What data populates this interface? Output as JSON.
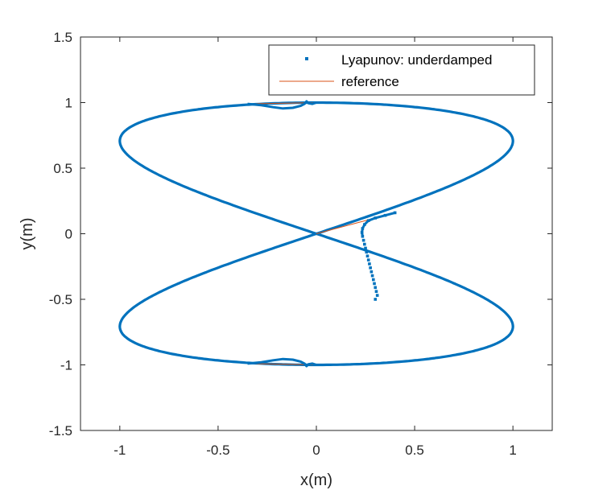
{
  "chart_data": {
    "type": "line",
    "title": "",
    "xlabel": "x(m)",
    "ylabel": "y(m)",
    "xlim": [
      -1.2,
      1.2
    ],
    "ylim": [
      -1.5,
      1.5
    ],
    "xticks": [
      -1,
      -0.5,
      0,
      0.5,
      1
    ],
    "yticks": [
      -1.5,
      -1,
      -0.5,
      0,
      0.5,
      1,
      1.5
    ],
    "xtick_labels": [
      "-1",
      "-0.5",
      "0",
      "0.5",
      "1"
    ],
    "ytick_labels": [
      "-1.5",
      "-1",
      "-0.5",
      "0",
      "0.5",
      "1",
      "1.5"
    ],
    "grid": false,
    "legend_position": "top-right",
    "series": [
      {
        "name": "Lyapunov: underdamped",
        "style": "markers",
        "color": "#0072BD",
        "description_of_path": "figure-eight trajectory x=sin(t), y=cos(t/2)-like lobes, converging from start point",
        "transient_points": [
          [
            0.3,
            -0.5
          ],
          [
            0.31,
            -0.47
          ],
          [
            0.305,
            -0.44
          ],
          [
            0.3,
            -0.41
          ],
          [
            0.295,
            -0.38
          ],
          [
            0.29,
            -0.35
          ],
          [
            0.285,
            -0.32
          ],
          [
            0.28,
            -0.29
          ],
          [
            0.275,
            -0.26
          ],
          [
            0.27,
            -0.23
          ],
          [
            0.265,
            -0.2
          ],
          [
            0.26,
            -0.17
          ],
          [
            0.255,
            -0.14
          ],
          [
            0.25,
            -0.11
          ],
          [
            0.245,
            -0.08
          ],
          [
            0.24,
            -0.05
          ],
          [
            0.235,
            -0.02
          ],
          [
            0.232,
            0.01
          ],
          [
            0.235,
            0.04
          ],
          [
            0.245,
            0.07
          ],
          [
            0.265,
            0.1
          ],
          [
            0.3,
            0.12
          ],
          [
            0.35,
            0.14
          ],
          [
            0.4,
            0.16
          ]
        ],
        "top_glitch": [
          [
            -0.35,
            0.99
          ],
          [
            -0.28,
            0.98
          ],
          [
            -0.22,
            0.965
          ],
          [
            -0.17,
            0.955
          ],
          [
            -0.12,
            0.96
          ],
          [
            -0.08,
            0.975
          ],
          [
            -0.06,
            0.99
          ],
          [
            -0.05,
            1.01
          ],
          [
            -0.04,
            0.995
          ],
          [
            -0.02,
            0.99
          ],
          [
            0.0,
            1.0
          ]
        ],
        "bottom_glitch": [
          [
            -0.35,
            -0.99
          ],
          [
            -0.28,
            -0.98
          ],
          [
            -0.22,
            -0.965
          ],
          [
            -0.17,
            -0.955
          ],
          [
            -0.12,
            -0.96
          ],
          [
            -0.08,
            -0.975
          ],
          [
            -0.06,
            -0.99
          ],
          [
            -0.05,
            -1.01
          ],
          [
            -0.04,
            -0.995
          ],
          [
            -0.02,
            -0.99
          ],
          [
            0.0,
            -1.0
          ]
        ]
      },
      {
        "name": "reference",
        "style": "line",
        "color": "#D95319",
        "parametric": "x = sin(t), y = cos(t/2)·sign-lobed figure eight",
        "shortcut_segments": [
          [
            [
              0.0,
              0.0
            ],
            [
              0.4,
              0.16
            ]
          ],
          [
            [
              -0.35,
              0.99
            ],
            [
              0.0,
              1.0
            ]
          ],
          [
            [
              -0.35,
              -0.99
            ],
            [
              0.0,
              -1.0
            ]
          ]
        ]
      }
    ],
    "legend": [
      {
        "label": "Lyapunov: underdamped",
        "marker": "square-dot"
      },
      {
        "label": "reference",
        "marker": "line"
      }
    ]
  },
  "colors": {
    "trajectory": "#0072BD",
    "reference": "#D95319",
    "axes": "#262626"
  }
}
